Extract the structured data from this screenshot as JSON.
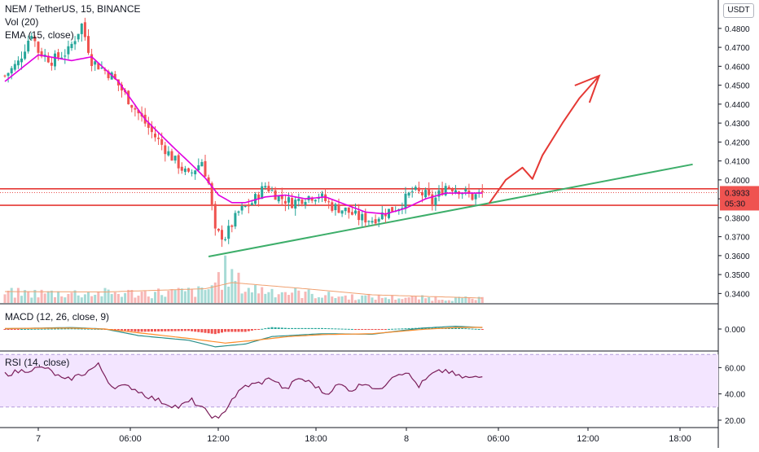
{
  "header": {
    "symbol_line": "NEM / TetherUS, 15, BINANCE",
    "vol_label": "Vol (20)",
    "ema_label": "EMA (15, close)",
    "macd_label": "MACD (12, 26, close, 9)",
    "rsi_label": "RSI (14, close)"
  },
  "currency_button": "USDT",
  "price_badge": {
    "price": "0.3933",
    "countdown": "05:30"
  },
  "colors": {
    "up": "#26a69a",
    "down": "#ef5350",
    "ema": "#e000e0",
    "support": "#e53935",
    "trend": "#3dae6a",
    "arrow": "#e53935",
    "rsi_line": "#7a1d5a",
    "rsi_band": "#f3e5ff",
    "macd": "#2a8f8a",
    "signal": "#ff8c2a"
  },
  "chart_data": [
    {
      "type": "candlestick",
      "name": "price",
      "ylim": [
        0.335,
        0.495
      ],
      "yticks": [
        "0.4800",
        "0.4700",
        "0.4600",
        "0.4500",
        "0.4400",
        "0.4300",
        "0.4200",
        "0.4100",
        "0.4000",
        "0.3900",
        "0.3800",
        "0.3700",
        "0.3600",
        "0.3500",
        "0.3400"
      ],
      "x_labels": [
        "7",
        "06:00",
        "12:00",
        "18:00",
        "8",
        "06:00",
        "12:00",
        "18:00"
      ],
      "close_anchors": [
        [
          0,
          0.455
        ],
        [
          4,
          0.462
        ],
        [
          8,
          0.478
        ],
        [
          10,
          0.468
        ],
        [
          14,
          0.463
        ],
        [
          19,
          0.468
        ],
        [
          23,
          0.482
        ],
        [
          26,
          0.463
        ],
        [
          32,
          0.455
        ],
        [
          38,
          0.44
        ],
        [
          44,
          0.425
        ],
        [
          50,
          0.412
        ],
        [
          55,
          0.402
        ],
        [
          59,
          0.41
        ],
        [
          61,
          0.398
        ],
        [
          63,
          0.372
        ],
        [
          66,
          0.37
        ],
        [
          70,
          0.383
        ],
        [
          74,
          0.388
        ],
        [
          78,
          0.397
        ],
        [
          82,
          0.391
        ],
        [
          86,
          0.388
        ],
        [
          90,
          0.391
        ],
        [
          94,
          0.392
        ],
        [
          98,
          0.386
        ],
        [
          102,
          0.384
        ],
        [
          106,
          0.38
        ],
        [
          110,
          0.379
        ],
        [
          114,
          0.383
        ],
        [
          118,
          0.386
        ],
        [
          122,
          0.394
        ],
        [
          126,
          0.392
        ],
        [
          128,
          0.388
        ],
        [
          132,
          0.397
        ],
        [
          136,
          0.395
        ],
        [
          140,
          0.391
        ],
        [
          143,
          0.393
        ]
      ],
      "ema": [
        [
          0,
          0.452
        ],
        [
          10,
          0.466
        ],
        [
          20,
          0.463
        ],
        [
          26,
          0.465
        ],
        [
          34,
          0.452
        ],
        [
          42,
          0.432
        ],
        [
          50,
          0.418
        ],
        [
          56,
          0.408
        ],
        [
          60,
          0.401
        ],
        [
          64,
          0.392
        ],
        [
          68,
          0.388
        ],
        [
          72,
          0.388
        ],
        [
          78,
          0.391
        ],
        [
          84,
          0.392
        ],
        [
          90,
          0.39
        ],
        [
          96,
          0.391
        ],
        [
          102,
          0.387
        ],
        [
          108,
          0.383
        ],
        [
          114,
          0.382
        ],
        [
          120,
          0.385
        ],
        [
          126,
          0.39
        ],
        [
          132,
          0.393
        ],
        [
          138,
          0.393
        ],
        [
          143,
          0.393
        ]
      ],
      "support_lines": [
        0.3953,
        0.3866
      ],
      "current_price": 0.3933,
      "trendline": [
        [
          61,
          0.3595
        ],
        [
          206,
          0.4082
        ]
      ],
      "arrow_path": [
        [
          145,
          0.3875
        ],
        [
          150,
          0.4
        ],
        [
          155,
          0.4065
        ],
        [
          158,
          0.4005
        ],
        [
          161,
          0.413
        ],
        [
          167,
          0.43
        ],
        [
          172,
          0.443
        ],
        [
          178,
          0.455
        ]
      ]
    },
    {
      "type": "bar",
      "name": "Vol (20)",
      "level": [
        [
          0,
          0.3
        ],
        [
          40,
          0.3
        ],
        [
          60,
          0.35
        ],
        [
          66,
          0.95
        ],
        [
          72,
          0.45
        ],
        [
          100,
          0.2
        ],
        [
          143,
          0.12
        ]
      ],
      "ma": [
        [
          0,
          0.28
        ],
        [
          30,
          0.27
        ],
        [
          60,
          0.35
        ],
        [
          68,
          0.5
        ],
        [
          90,
          0.35
        ],
        [
          110,
          0.2
        ],
        [
          143,
          0.12
        ]
      ]
    },
    {
      "type": "line",
      "name": "MACD (12, 26, close, 9)",
      "yticks": [
        "0.000"
      ],
      "macd": [
        [
          0,
          0.0002
        ],
        [
          20,
          0.0008
        ],
        [
          30,
          0.0
        ],
        [
          40,
          -0.0035
        ],
        [
          55,
          -0.006
        ],
        [
          63,
          -0.0095
        ],
        [
          72,
          -0.008
        ],
        [
          80,
          -0.004
        ],
        [
          95,
          -0.0025
        ],
        [
          110,
          -0.0028
        ],
        [
          125,
          0.0005
        ],
        [
          135,
          0.0015
        ],
        [
          143,
          0.0008
        ]
      ],
      "signal": [
        [
          0,
          0.0003
        ],
        [
          20,
          0.0005
        ],
        [
          30,
          0.0
        ],
        [
          40,
          -0.002
        ],
        [
          55,
          -0.005
        ],
        [
          66,
          -0.0075
        ],
        [
          75,
          -0.006
        ],
        [
          85,
          -0.004
        ],
        [
          95,
          -0.003
        ],
        [
          110,
          -0.0025
        ],
        [
          125,
          -0.0002
        ],
        [
          135,
          0.0008
        ],
        [
          143,
          0.0009
        ]
      ]
    },
    {
      "type": "line",
      "name": "RSI (14, close)",
      "ylim": [
        15,
        72
      ],
      "yticks": [
        "60.00",
        "40.00",
        "20.00"
      ],
      "band": [
        30,
        70
      ],
      "rsi_anchors": [
        [
          0,
          55
        ],
        [
          6,
          58
        ],
        [
          12,
          60
        ],
        [
          18,
          50
        ],
        [
          24,
          56
        ],
        [
          28,
          62
        ],
        [
          32,
          46
        ],
        [
          38,
          45
        ],
        [
          43,
          38
        ],
        [
          48,
          33
        ],
        [
          52,
          30
        ],
        [
          56,
          35
        ],
        [
          60,
          27
        ],
        [
          64,
          20
        ],
        [
          68,
          36
        ],
        [
          72,
          46
        ],
        [
          76,
          48
        ],
        [
          80,
          52
        ],
        [
          84,
          43
        ],
        [
          88,
          52
        ],
        [
          92,
          48
        ],
        [
          96,
          40
        ],
        [
          100,
          47
        ],
        [
          104,
          43
        ],
        [
          108,
          49
        ],
        [
          112,
          42
        ],
        [
          116,
          54
        ],
        [
          120,
          57
        ],
        [
          124,
          46
        ],
        [
          128,
          55
        ],
        [
          132,
          58
        ],
        [
          136,
          53
        ],
        [
          140,
          52
        ],
        [
          143,
          53
        ]
      ]
    }
  ]
}
